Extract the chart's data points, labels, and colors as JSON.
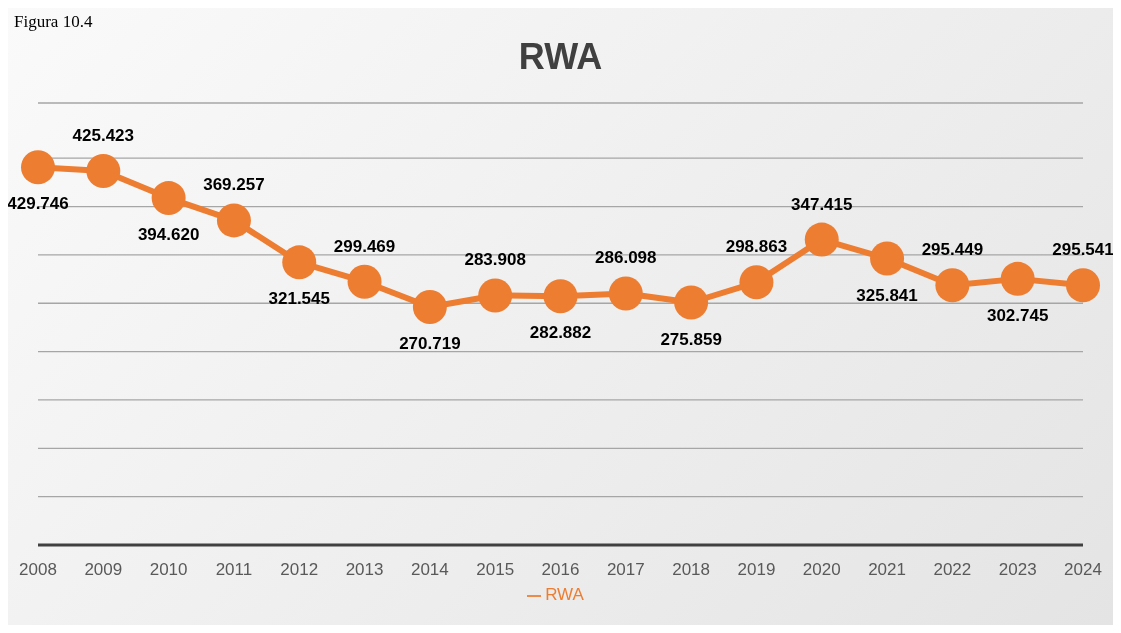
{
  "chart_data": {
    "type": "line",
    "title": "RWA",
    "annotations": [
      "Figura 10.4"
    ],
    "categories": [
      "2008",
      "2009",
      "2010",
      "2011",
      "2012",
      "2013",
      "2014",
      "2015",
      "2016",
      "2017",
      "2018",
      "2019",
      "2020",
      "2021",
      "2022",
      "2023",
      "2024"
    ],
    "series": [
      {
        "name": "RWA",
        "color": "#ed7d31",
        "values": [
          429.746,
          425.423,
          394.62,
          369.257,
          321.545,
          299.469,
          270.719,
          283.908,
          282.882,
          286.098,
          275.859,
          298.863,
          347.415,
          325.841,
          295.449,
          302.745,
          295.541
        ],
        "value_labels": [
          "429.746",
          "425.423",
          "394.620",
          "369.257",
          "321.545",
          "299.469",
          "270.719",
          "283.908",
          "282.882",
          "286.098",
          "275.859",
          "298.863",
          "347.415",
          "325.841",
          "295.449",
          "302.745",
          "295.541"
        ]
      }
    ],
    "marker": "circle",
    "grid": "y",
    "legend": "bottom",
    "tick_labels": "x"
  }
}
